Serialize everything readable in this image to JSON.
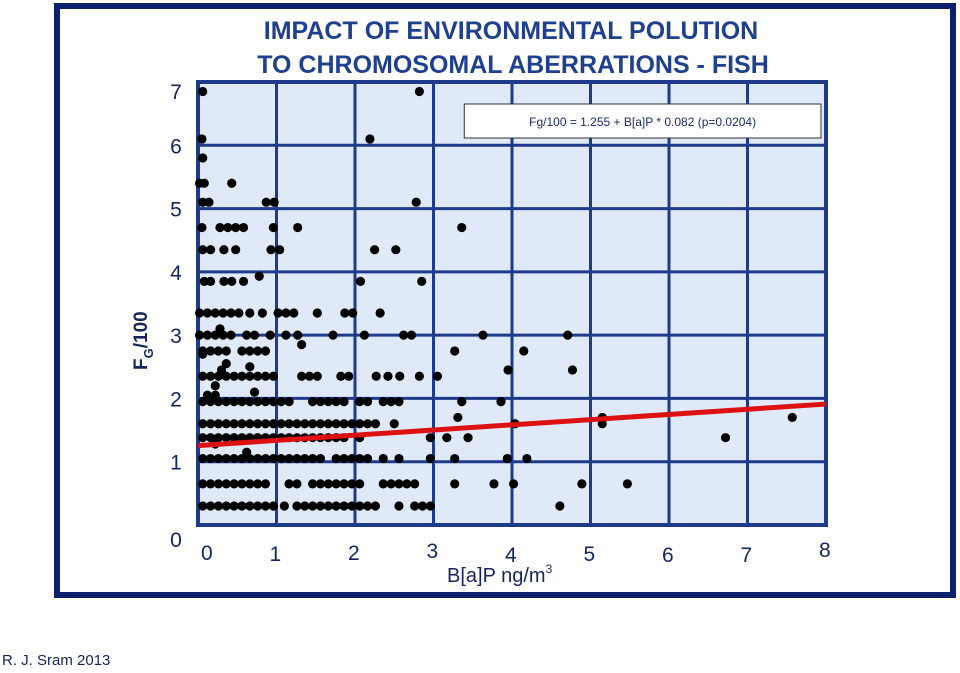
{
  "chart_data": {
    "type": "scatter",
    "title_line1": "IMPACT OF ENVIRONMENTAL POLUTION",
    "title_line2": "TO CHROMOSOMAL ABERRATIONS - FISH",
    "xlabel_text": "B[a]P ng/m",
    "xlabel_sup": "3",
    "ylabel_main": "F",
    "ylabel_sub": "G",
    "ylabel_tail": "/100",
    "xlim": [
      0,
      8
    ],
    "ylim": [
      0,
      7
    ],
    "x_ticks": [
      "0",
      "1",
      "2",
      "3",
      "4",
      "5",
      "6",
      "7",
      "8"
    ],
    "y_ticks": [
      "0",
      "1",
      "2",
      "3",
      "4",
      "5",
      "6",
      "7"
    ],
    "grid": true,
    "equation": "Fg/100 = 1.255 + B[a]P * 0.082 (p=0.0204)",
    "regression": {
      "intercept": 1.255,
      "slope": 0.082,
      "x_range": [
        0,
        8
      ]
    },
    "points": [
      [
        0.06,
        6.85
      ],
      [
        2.82,
        6.85
      ],
      [
        0.05,
        6.1
      ],
      [
        2.19,
        6.1
      ],
      [
        0.06,
        5.8
      ],
      [
        0.02,
        5.4
      ],
      [
        0.08,
        5.4
      ],
      [
        0.43,
        5.4
      ],
      [
        0.06,
        5.1
      ],
      [
        0.14,
        5.1
      ],
      [
        0.87,
        5.1
      ],
      [
        0.97,
        5.1
      ],
      [
        2.78,
        5.1
      ],
      [
        0.05,
        4.7
      ],
      [
        0.28,
        4.7
      ],
      [
        0.38,
        4.7
      ],
      [
        0.48,
        4.7
      ],
      [
        0.58,
        4.7
      ],
      [
        0.96,
        4.7
      ],
      [
        1.27,
        4.7
      ],
      [
        3.36,
        4.7
      ],
      [
        0.06,
        4.35
      ],
      [
        0.16,
        4.35
      ],
      [
        0.33,
        4.35
      ],
      [
        0.48,
        4.35
      ],
      [
        0.93,
        4.35
      ],
      [
        1.04,
        4.35
      ],
      [
        2.25,
        4.35
      ],
      [
        2.52,
        4.35
      ],
      [
        0.08,
        3.85
      ],
      [
        0.16,
        3.85
      ],
      [
        0.33,
        3.85
      ],
      [
        0.43,
        3.85
      ],
      [
        0.58,
        3.85
      ],
      [
        0.78,
        3.93
      ],
      [
        2.07,
        3.85
      ],
      [
        2.85,
        3.85
      ],
      [
        0.02,
        3.35
      ],
      [
        0.12,
        3.35
      ],
      [
        0.22,
        3.35
      ],
      [
        0.32,
        3.35
      ],
      [
        0.42,
        3.35
      ],
      [
        0.52,
        3.35
      ],
      [
        0.66,
        3.35
      ],
      [
        0.82,
        3.35
      ],
      [
        1.02,
        3.35
      ],
      [
        1.12,
        3.35
      ],
      [
        1.22,
        3.35
      ],
      [
        1.52,
        3.35
      ],
      [
        1.87,
        3.35
      ],
      [
        1.97,
        3.35
      ],
      [
        2.32,
        3.35
      ],
      [
        0.02,
        3.0
      ],
      [
        0.12,
        3.0
      ],
      [
        0.22,
        3.0
      ],
      [
        0.32,
        3.0
      ],
      [
        0.42,
        3.0
      ],
      [
        0.62,
        3.0
      ],
      [
        0.72,
        3.0
      ],
      [
        0.92,
        3.0
      ],
      [
        1.12,
        3.0
      ],
      [
        1.27,
        3.0
      ],
      [
        1.72,
        3.0
      ],
      [
        2.12,
        3.0
      ],
      [
        2.62,
        3.0
      ],
      [
        2.72,
        3.0
      ],
      [
        3.63,
        3.0
      ],
      [
        4.71,
        3.0
      ],
      [
        0.28,
        3.1
      ],
      [
        0.06,
        2.75
      ],
      [
        0.16,
        2.75
      ],
      [
        0.26,
        2.75
      ],
      [
        0.36,
        2.75
      ],
      [
        0.56,
        2.75
      ],
      [
        0.66,
        2.75
      ],
      [
        0.76,
        2.75
      ],
      [
        0.86,
        2.75
      ],
      [
        1.32,
        2.85
      ],
      [
        3.27,
        2.75
      ],
      [
        4.15,
        2.75
      ],
      [
        0.06,
        2.7
      ],
      [
        0.36,
        2.55
      ],
      [
        0.66,
        2.5
      ],
      [
        0.06,
        2.35
      ],
      [
        0.16,
        2.35
      ],
      [
        0.26,
        2.35
      ],
      [
        0.36,
        2.35
      ],
      [
        0.46,
        2.35
      ],
      [
        0.56,
        2.35
      ],
      [
        0.66,
        2.35
      ],
      [
        0.76,
        2.35
      ],
      [
        0.86,
        2.35
      ],
      [
        0.96,
        2.35
      ],
      [
        1.32,
        2.35
      ],
      [
        1.42,
        2.35
      ],
      [
        1.52,
        2.35
      ],
      [
        1.82,
        2.35
      ],
      [
        1.92,
        2.35
      ],
      [
        2.27,
        2.35
      ],
      [
        2.42,
        2.35
      ],
      [
        2.57,
        2.35
      ],
      [
        2.82,
        2.35
      ],
      [
        3.05,
        2.35
      ],
      [
        3.95,
        2.45
      ],
      [
        4.77,
        2.45
      ],
      [
        0.22,
        2.2
      ],
      [
        0.3,
        2.45
      ],
      [
        0.72,
        2.1
      ],
      [
        0.12,
        2.05
      ],
      [
        0.22,
        2.05
      ],
      [
        0.06,
        1.95
      ],
      [
        0.16,
        1.95
      ],
      [
        0.26,
        1.95
      ],
      [
        0.36,
        1.95
      ],
      [
        0.46,
        1.95
      ],
      [
        0.56,
        1.95
      ],
      [
        0.66,
        1.95
      ],
      [
        0.76,
        1.95
      ],
      [
        0.86,
        1.95
      ],
      [
        0.96,
        1.95
      ],
      [
        1.06,
        1.95
      ],
      [
        1.16,
        1.95
      ],
      [
        1.46,
        1.95
      ],
      [
        1.56,
        1.95
      ],
      [
        1.66,
        1.95
      ],
      [
        1.76,
        1.95
      ],
      [
        1.86,
        1.95
      ],
      [
        2.06,
        1.95
      ],
      [
        2.16,
        1.95
      ],
      [
        2.36,
        1.95
      ],
      [
        2.46,
        1.95
      ],
      [
        2.56,
        1.95
      ],
      [
        3.36,
        1.95
      ],
      [
        3.86,
        1.95
      ],
      [
        0.06,
        1.6
      ],
      [
        0.16,
        1.6
      ],
      [
        0.26,
        1.6
      ],
      [
        0.36,
        1.6
      ],
      [
        0.46,
        1.6
      ],
      [
        0.56,
        1.6
      ],
      [
        0.66,
        1.6
      ],
      [
        0.76,
        1.6
      ],
      [
        0.86,
        1.6
      ],
      [
        0.96,
        1.6
      ],
      [
        1.06,
        1.6
      ],
      [
        1.16,
        1.6
      ],
      [
        1.26,
        1.6
      ],
      [
        1.36,
        1.6
      ],
      [
        1.46,
        1.6
      ],
      [
        1.56,
        1.6
      ],
      [
        1.66,
        1.6
      ],
      [
        1.76,
        1.6
      ],
      [
        1.86,
        1.6
      ],
      [
        1.96,
        1.6
      ],
      [
        2.06,
        1.6
      ],
      [
        2.16,
        1.6
      ],
      [
        2.26,
        1.6
      ],
      [
        2.5,
        1.6
      ],
      [
        3.31,
        1.7
      ],
      [
        4.04,
        1.6
      ],
      [
        5.15,
        1.6
      ],
      [
        5.15,
        1.7
      ],
      [
        7.57,
        1.7
      ],
      [
        0.06,
        1.38
      ],
      [
        0.16,
        1.38
      ],
      [
        0.26,
        1.38
      ],
      [
        0.36,
        1.38
      ],
      [
        0.46,
        1.38
      ],
      [
        0.56,
        1.38
      ],
      [
        0.66,
        1.38
      ],
      [
        0.76,
        1.38
      ],
      [
        0.86,
        1.38
      ],
      [
        0.96,
        1.38
      ],
      [
        1.06,
        1.38
      ],
      [
        1.16,
        1.38
      ],
      [
        1.26,
        1.38
      ],
      [
        1.36,
        1.38
      ],
      [
        1.46,
        1.38
      ],
      [
        1.56,
        1.38
      ],
      [
        1.66,
        1.38
      ],
      [
        1.76,
        1.38
      ],
      [
        1.86,
        1.38
      ],
      [
        2.06,
        1.38
      ],
      [
        2.96,
        1.38
      ],
      [
        3.17,
        1.38
      ],
      [
        3.44,
        1.38
      ],
      [
        6.72,
        1.38
      ],
      [
        0.22,
        1.28
      ],
      [
        0.62,
        1.15
      ],
      [
        0.06,
        1.05
      ],
      [
        0.16,
        1.05
      ],
      [
        0.26,
        1.05
      ],
      [
        0.36,
        1.05
      ],
      [
        0.46,
        1.05
      ],
      [
        0.56,
        1.05
      ],
      [
        0.66,
        1.05
      ],
      [
        0.76,
        1.05
      ],
      [
        0.86,
        1.05
      ],
      [
        0.96,
        1.05
      ],
      [
        1.06,
        1.05
      ],
      [
        1.16,
        1.05
      ],
      [
        1.26,
        1.05
      ],
      [
        1.36,
        1.05
      ],
      [
        1.46,
        1.05
      ],
      [
        1.56,
        1.05
      ],
      [
        1.76,
        1.05
      ],
      [
        1.86,
        1.05
      ],
      [
        1.96,
        1.05
      ],
      [
        2.06,
        1.05
      ],
      [
        2.16,
        1.05
      ],
      [
        2.36,
        1.05
      ],
      [
        2.56,
        1.05
      ],
      [
        2.96,
        1.05
      ],
      [
        3.27,
        1.05
      ],
      [
        3.94,
        1.05
      ],
      [
        4.19,
        1.05
      ],
      [
        0.06,
        0.65
      ],
      [
        0.16,
        0.65
      ],
      [
        0.26,
        0.65
      ],
      [
        0.36,
        0.65
      ],
      [
        0.46,
        0.65
      ],
      [
        0.56,
        0.65
      ],
      [
        0.66,
        0.65
      ],
      [
        0.76,
        0.65
      ],
      [
        0.86,
        0.65
      ],
      [
        1.16,
        0.65
      ],
      [
        1.26,
        0.65
      ],
      [
        1.46,
        0.65
      ],
      [
        1.56,
        0.65
      ],
      [
        1.66,
        0.65
      ],
      [
        1.76,
        0.65
      ],
      [
        1.86,
        0.65
      ],
      [
        1.96,
        0.65
      ],
      [
        2.06,
        0.65
      ],
      [
        2.36,
        0.65
      ],
      [
        2.46,
        0.65
      ],
      [
        2.56,
        0.65
      ],
      [
        2.66,
        0.65
      ],
      [
        2.76,
        0.65
      ],
      [
        3.27,
        0.65
      ],
      [
        3.77,
        0.65
      ],
      [
        4.02,
        0.65
      ],
      [
        4.89,
        0.65
      ],
      [
        5.47,
        0.65
      ],
      [
        0.06,
        0.3
      ],
      [
        0.16,
        0.3
      ],
      [
        0.26,
        0.3
      ],
      [
        0.36,
        0.3
      ],
      [
        0.46,
        0.3
      ],
      [
        0.56,
        0.3
      ],
      [
        0.66,
        0.3
      ],
      [
        0.76,
        0.3
      ],
      [
        0.86,
        0.3
      ],
      [
        0.96,
        0.3
      ],
      [
        1.1,
        0.3
      ],
      [
        1.26,
        0.3
      ],
      [
        1.36,
        0.3
      ],
      [
        1.46,
        0.3
      ],
      [
        1.56,
        0.3
      ],
      [
        1.66,
        0.3
      ],
      [
        1.76,
        0.3
      ],
      [
        1.86,
        0.3
      ],
      [
        1.96,
        0.3
      ],
      [
        2.06,
        0.3
      ],
      [
        2.16,
        0.3
      ],
      [
        2.26,
        0.3
      ],
      [
        2.56,
        0.3
      ],
      [
        2.76,
        0.3
      ],
      [
        2.86,
        0.3
      ],
      [
        2.96,
        0.3
      ],
      [
        4.61,
        0.3
      ]
    ]
  },
  "colors": {
    "frame": "#0d1f6e",
    "plot_bg": "#dfe9f8",
    "grid": "#1f3a8a",
    "points": "#000000",
    "regression": "#dd1111",
    "text": "#17245c"
  },
  "credit": "R. J. Sram 2013"
}
